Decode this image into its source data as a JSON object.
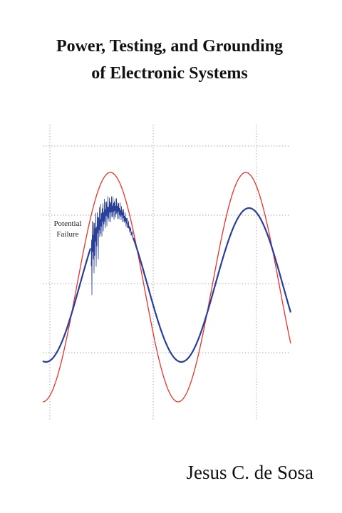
{
  "cover": {
    "title": [
      "Power, Testing, and Grounding",
      "of Electronic Systems"
    ],
    "annotation": [
      "Potential",
      "Failure"
    ],
    "author": "Jesus C. de Sosa"
  }
}
